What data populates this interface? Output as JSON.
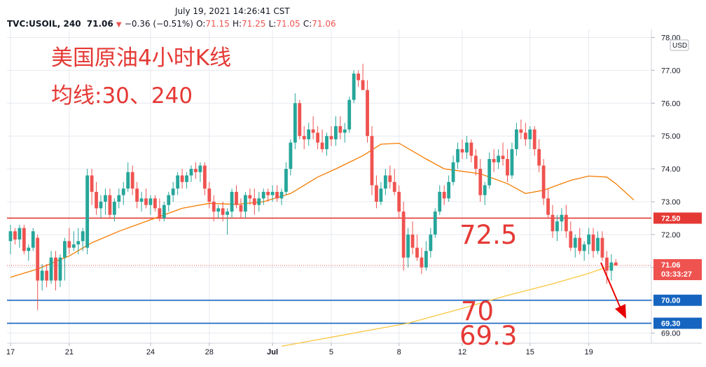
{
  "header": {
    "timestamp": "July 19, 2021 14:26:41 CST",
    "symbol": "TVC:USOIL, 240",
    "last": "71.06",
    "arrow": "▼",
    "change": "−0.36 (−0.51%)",
    "o_label": "O:",
    "o_value": "71.15",
    "h_label": "H:",
    "h_value": "71.25",
    "l_label": "L:",
    "l_value": "71.05",
    "c_label": "C:",
    "c_value": "71.06"
  },
  "annotations": {
    "title": "美国原油4小时K线",
    "subtitle": "均线:30、240",
    "level_1": "72.5",
    "level_2": "70",
    "level_3": "69.3"
  },
  "colors": {
    "up": "#26a69a",
    "down": "#ef5350",
    "ma30": "#f57c00",
    "ma240": "#f9c740",
    "red_line": "#e53935",
    "blue_line": "#1565c0",
    "annotation": "#e53935",
    "grid": "#e6e9ef"
  },
  "chart_data": {
    "type": "candlestick",
    "currency": "USD",
    "y_ticks": [
      "69.00",
      "70.00",
      "71.00",
      "72.00",
      "73.00",
      "74.00",
      "75.00",
      "76.00",
      "77.00",
      "78.00"
    ],
    "ylim": [
      68.6,
      78.1
    ],
    "x_ticks": [
      {
        "label": "17",
        "i": 0
      },
      {
        "label": "21",
        "i": 13
      },
      {
        "label": "24",
        "i": 31
      },
      {
        "label": "28",
        "i": 44
      },
      {
        "label": "Jul",
        "i": 58
      },
      {
        "label": "5",
        "i": 71
      },
      {
        "label": "8",
        "i": 86
      },
      {
        "label": "12",
        "i": 100
      },
      {
        "label": "15",
        "i": 115
      },
      {
        "label": "19",
        "i": 128
      }
    ],
    "horizontal_levels": [
      {
        "value": 72.5,
        "label": "72.50",
        "kind": "red"
      },
      {
        "value": 70.0,
        "label": "70.00",
        "kind": "blue"
      },
      {
        "value": 69.3,
        "label": "69.30",
        "kind": "blue"
      }
    ],
    "last_price": {
      "value": 71.06,
      "label": "71.06",
      "countdown": "03:33:27"
    },
    "candles": [
      [
        71.8,
        72.3,
        71.4,
        72.1
      ],
      [
        72.1,
        72.2,
        71.7,
        71.85
      ],
      [
        71.85,
        72.3,
        71.6,
        72.2
      ],
      [
        72.2,
        72.3,
        71.4,
        71.5
      ],
      [
        71.5,
        71.7,
        71.2,
        71.6
      ],
      [
        71.6,
        72.2,
        71.5,
        72.1
      ],
      [
        71.9,
        72.0,
        69.7,
        70.6
      ],
      [
        70.6,
        71.1,
        70.3,
        70.9
      ],
      [
        70.9,
        71.1,
        70.4,
        70.6
      ],
      [
        70.6,
        71.5,
        70.5,
        71.3
      ],
      [
        71.3,
        71.5,
        70.3,
        70.6
      ],
      [
        70.6,
        71.4,
        70.4,
        71.3
      ],
      [
        71.3,
        71.9,
        70.6,
        71.8
      ],
      [
        71.8,
        72.2,
        71.4,
        71.6
      ],
      [
        71.6,
        72.1,
        71.5,
        71.7
      ],
      [
        71.7,
        72.2,
        71.4,
        71.8
      ],
      [
        71.8,
        72.2,
        71.5,
        72.1
      ],
      [
        71.6,
        74.0,
        71.4,
        73.8
      ],
      [
        73.8,
        74.0,
        72.9,
        73.3
      ],
      [
        73.3,
        73.6,
        72.6,
        72.8
      ],
      [
        72.8,
        73.2,
        72.5,
        73.0
      ],
      [
        73.0,
        73.4,
        72.6,
        73.2
      ],
      [
        73.2,
        73.4,
        72.5,
        72.6
      ],
      [
        72.6,
        73.1,
        72.4,
        73.0
      ],
      [
        73.0,
        73.4,
        72.8,
        73.2
      ],
      [
        73.2,
        73.6,
        72.9,
        73.4
      ],
      [
        73.4,
        74.2,
        73.3,
        73.9
      ],
      [
        73.9,
        74.1,
        73.2,
        73.4
      ],
      [
        73.4,
        73.6,
        72.8,
        73.0
      ],
      [
        73.0,
        73.3,
        72.7,
        73.1
      ],
      [
        73.1,
        73.4,
        72.8,
        72.9
      ],
      [
        72.9,
        73.2,
        72.6,
        73.1
      ],
      [
        73.1,
        73.2,
        72.7,
        72.8
      ],
      [
        72.8,
        73.1,
        72.4,
        72.5
      ],
      [
        72.5,
        73.0,
        72.4,
        72.9
      ],
      [
        72.9,
        73.3,
        72.7,
        73.2
      ],
      [
        73.2,
        73.6,
        73.0,
        73.4
      ],
      [
        73.4,
        73.9,
        73.2,
        73.8
      ],
      [
        73.8,
        74.0,
        73.4,
        73.6
      ],
      [
        73.6,
        73.9,
        73.4,
        73.8
      ],
      [
        73.8,
        74.1,
        73.6,
        74.0
      ],
      [
        74.0,
        74.2,
        73.7,
        73.9
      ],
      [
        73.9,
        74.2,
        73.6,
        74.1
      ],
      [
        74.1,
        74.2,
        73.2,
        73.4
      ],
      [
        73.4,
        73.6,
        72.8,
        73.0
      ],
      [
        73.0,
        73.2,
        72.4,
        72.7
      ],
      [
        72.7,
        72.9,
        72.5,
        72.8
      ],
      [
        72.8,
        73.0,
        72.4,
        72.6
      ],
      [
        72.6,
        72.8,
        72.0,
        72.7
      ],
      [
        72.7,
        73.4,
        72.5,
        73.3
      ],
      [
        73.3,
        73.5,
        72.8,
        72.9
      ],
      [
        72.9,
        73.1,
        72.5,
        72.7
      ],
      [
        72.7,
        73.3,
        72.5,
        73.2
      ],
      [
        73.2,
        73.4,
        72.9,
        73.1
      ],
      [
        73.1,
        73.4,
        72.6,
        72.9
      ],
      [
        72.9,
        73.3,
        72.7,
        73.1
      ],
      [
        73.1,
        73.4,
        72.9,
        73.3
      ],
      [
        73.3,
        73.4,
        73.0,
        73.2
      ],
      [
        73.2,
        73.5,
        73.0,
        73.3
      ],
      [
        73.3,
        73.5,
        73.0,
        73.1
      ],
      [
        73.1,
        73.4,
        72.9,
        73.3
      ],
      [
        73.3,
        74.2,
        73.2,
        74.0
      ],
      [
        74.0,
        74.9,
        73.8,
        74.8
      ],
      [
        74.8,
        76.3,
        74.6,
        76.0
      ],
      [
        76.0,
        76.1,
        74.9,
        75.0
      ],
      [
        75.0,
        75.3,
        74.6,
        74.9
      ],
      [
        74.9,
        75.4,
        74.7,
        75.2
      ],
      [
        75.2,
        75.6,
        74.9,
        75.1
      ],
      [
        75.1,
        75.3,
        74.6,
        74.8
      ],
      [
        74.8,
        75.2,
        74.5,
        74.6
      ],
      [
        74.6,
        75.1,
        74.4,
        75.0
      ],
      [
        75.0,
        75.3,
        74.7,
        74.9
      ],
      [
        74.9,
        75.6,
        74.7,
        75.3
      ],
      [
        75.3,
        75.6,
        74.9,
        75.1
      ],
      [
        75.1,
        75.4,
        74.8,
        75.2
      ],
      [
        75.2,
        76.2,
        75.1,
        76.1
      ],
      [
        76.1,
        77.0,
        76.0,
        76.9
      ],
      [
        76.9,
        77.0,
        76.5,
        76.7
      ],
      [
        76.7,
        77.2,
        76.4,
        76.4
      ],
      [
        76.4,
        76.7,
        74.8,
        75.0
      ],
      [
        75.0,
        75.3,
        73.2,
        73.5
      ],
      [
        73.5,
        73.8,
        72.8,
        73.0
      ],
      [
        73.0,
        73.6,
        72.9,
        73.4
      ],
      [
        73.4,
        74.0,
        73.2,
        73.8
      ],
      [
        73.8,
        74.1,
        73.4,
        73.6
      ],
      [
        73.6,
        74.0,
        73.2,
        73.3
      ],
      [
        73.3,
        73.5,
        72.5,
        72.7
      ],
      [
        72.7,
        73.0,
        70.9,
        71.3
      ],
      [
        71.3,
        72.2,
        71.0,
        72.0
      ],
      [
        72.0,
        72.4,
        71.4,
        71.6
      ],
      [
        71.6,
        72.0,
        71.2,
        71.3
      ],
      [
        71.3,
        71.6,
        70.8,
        71.0
      ],
      [
        71.0,
        71.8,
        70.9,
        71.5
      ],
      [
        71.5,
        72.2,
        71.3,
        72.0
      ],
      [
        72.0,
        72.8,
        71.9,
        72.7
      ],
      [
        72.7,
        73.5,
        72.6,
        73.3
      ],
      [
        73.3,
        73.5,
        72.9,
        73.1
      ],
      [
        73.1,
        73.8,
        73.0,
        73.6
      ],
      [
        73.6,
        74.4,
        73.5,
        74.2
      ],
      [
        74.2,
        74.8,
        74.0,
        74.6
      ],
      [
        74.6,
        74.9,
        74.3,
        74.5
      ],
      [
        74.5,
        75.0,
        74.3,
        74.8
      ],
      [
        74.8,
        74.9,
        74.2,
        74.4
      ],
      [
        74.4,
        74.6,
        73.8,
        74.0
      ],
      [
        74.0,
        74.3,
        73.0,
        73.2
      ],
      [
        73.2,
        73.6,
        72.9,
        73.5
      ],
      [
        73.5,
        74.5,
        73.4,
        74.3
      ],
      [
        74.3,
        74.6,
        73.9,
        74.2
      ],
      [
        74.2,
        74.6,
        74.0,
        74.4
      ],
      [
        74.4,
        74.8,
        74.1,
        74.3
      ],
      [
        74.3,
        74.6,
        73.6,
        73.8
      ],
      [
        73.8,
        74.8,
        73.7,
        74.6
      ],
      [
        74.6,
        75.4,
        74.4,
        75.2
      ],
      [
        75.2,
        75.5,
        74.9,
        75.1
      ],
      [
        75.1,
        75.4,
        74.7,
        74.9
      ],
      [
        74.9,
        75.3,
        74.6,
        75.2
      ],
      [
        75.2,
        75.3,
        74.4,
        74.6
      ],
      [
        74.6,
        74.9,
        73.9,
        74.1
      ],
      [
        74.1,
        74.3,
        72.9,
        73.1
      ],
      [
        73.1,
        73.4,
        72.5,
        72.6
      ],
      [
        72.6,
        72.9,
        71.9,
        72.1
      ],
      [
        72.1,
        72.6,
        71.8,
        72.4
      ],
      [
        72.4,
        72.8,
        72.1,
        72.6
      ],
      [
        72.6,
        72.9,
        71.9,
        72.1
      ],
      [
        72.1,
        72.4,
        71.5,
        71.6
      ],
      [
        71.6,
        72.0,
        71.3,
        71.9
      ],
      [
        71.9,
        72.2,
        71.4,
        71.5
      ],
      [
        71.5,
        71.8,
        71.2,
        71.7
      ],
      [
        71.7,
        72.2,
        71.4,
        72.0
      ],
      [
        72.0,
        72.2,
        71.3,
        71.5
      ],
      [
        71.5,
        72.1,
        71.4,
        71.9
      ],
      [
        71.9,
        72.1,
        71.2,
        71.3
      ],
      [
        71.3,
        71.5,
        70.5,
        70.9
      ],
      [
        70.9,
        71.4,
        70.6,
        71.15
      ],
      [
        71.15,
        71.25,
        71.05,
        71.06
      ]
    ],
    "ma30": [
      [
        0,
        70.7
      ],
      [
        6,
        70.95
      ],
      [
        13,
        71.35
      ],
      [
        18,
        71.75
      ],
      [
        24,
        72.1
      ],
      [
        30,
        72.4
      ],
      [
        38,
        72.8
      ],
      [
        44,
        72.95
      ],
      [
        50,
        72.92
      ],
      [
        56,
        73.0
      ],
      [
        62,
        73.25
      ],
      [
        68,
        73.75
      ],
      [
        72,
        74.0
      ],
      [
        78,
        74.4
      ],
      [
        82,
        74.75
      ],
      [
        86,
        74.78
      ],
      [
        92,
        74.3
      ],
      [
        96,
        74.0
      ],
      [
        104,
        73.85
      ],
      [
        110,
        73.55
      ],
      [
        114,
        73.25
      ],
      [
        118,
        73.35
      ],
      [
        124,
        73.65
      ],
      [
        128,
        73.78
      ],
      [
        132,
        73.75
      ],
      [
        134,
        73.55
      ],
      [
        138,
        73.05
      ]
    ],
    "ma240": [
      [
        60,
        68.6
      ],
      [
        72,
        68.9
      ],
      [
        88,
        69.3
      ],
      [
        100,
        69.75
      ],
      [
        110,
        70.15
      ],
      [
        120,
        70.5
      ],
      [
        128,
        70.82
      ],
      [
        134,
        71.1
      ]
    ]
  }
}
